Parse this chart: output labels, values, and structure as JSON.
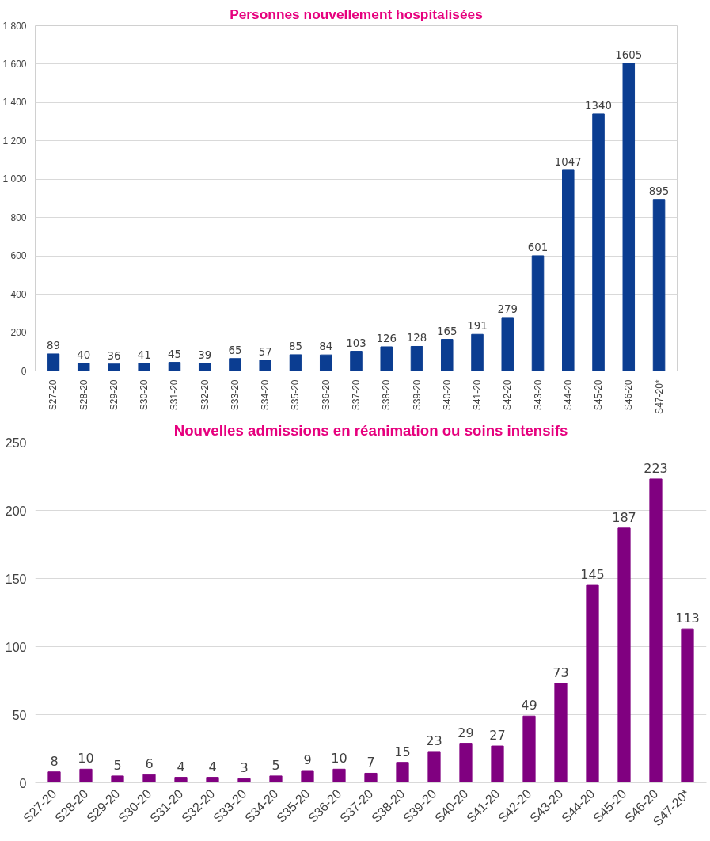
{
  "chart_data": [
    {
      "type": "bar",
      "title": "Personnes nouvellement hospitalisées",
      "categories": [
        "S27-20",
        "S28-20",
        "S29-20",
        "S30-20",
        "S31-20",
        "S32-20",
        "S33-20",
        "S34-20",
        "S35-20",
        "S36-20",
        "S37-20",
        "S38-20",
        "S39-20",
        "S40-20",
        "S41-20",
        "S42-20",
        "S43-20",
        "S44-20",
        "S45-20",
        "S46-20",
        "S47-20*"
      ],
      "series": [
        {
          "color": "#0b3d91",
          "values": [
            89,
            40,
            36,
            41,
            45,
            39,
            65,
            57,
            85,
            84,
            103,
            126,
            128,
            165,
            191,
            279,
            601,
            1047,
            1340,
            1605,
            895
          ]
        }
      ],
      "ylim": [
        0,
        1800
      ],
      "yticks": [
        0,
        200,
        400,
        600,
        800,
        {
          "value": 1000,
          "label": "1 000"
        },
        {
          "value": 1200,
          "label": "1 200"
        },
        {
          "value": 1400,
          "label": "1 400"
        },
        {
          "value": 1600,
          "label": "1 600"
        },
        {
          "value": 1800,
          "label": "1 800"
        }
      ],
      "grid": "y",
      "data_labels": true
    },
    {
      "type": "bar",
      "title": "Nouvelles admissions en réanimation ou soins intensifs",
      "categories": [
        "S27-20",
        "S28-20",
        "S29-20",
        "S30-20",
        "S31-20",
        "S32-20",
        "S33-20",
        "S34-20",
        "S35-20",
        "S36-20",
        "S37-20",
        "S38-20",
        "S39-20",
        "S40-20",
        "S41-20",
        "S42-20",
        "S43-20",
        "S44-20",
        "S45-20",
        "S46-20",
        "S47-20*"
      ],
      "series": [
        {
          "color": "#800080",
          "values": [
            8,
            10,
            5,
            6,
            4,
            4,
            3,
            5,
            9,
            10,
            7,
            15,
            23,
            29,
            27,
            49,
            73,
            145,
            187,
            223,
            113
          ]
        }
      ],
      "ylim": [
        0,
        250
      ],
      "yticks": [
        0,
        50,
        100,
        150,
        200,
        250
      ],
      "grid": "y",
      "data_labels": true
    }
  ]
}
